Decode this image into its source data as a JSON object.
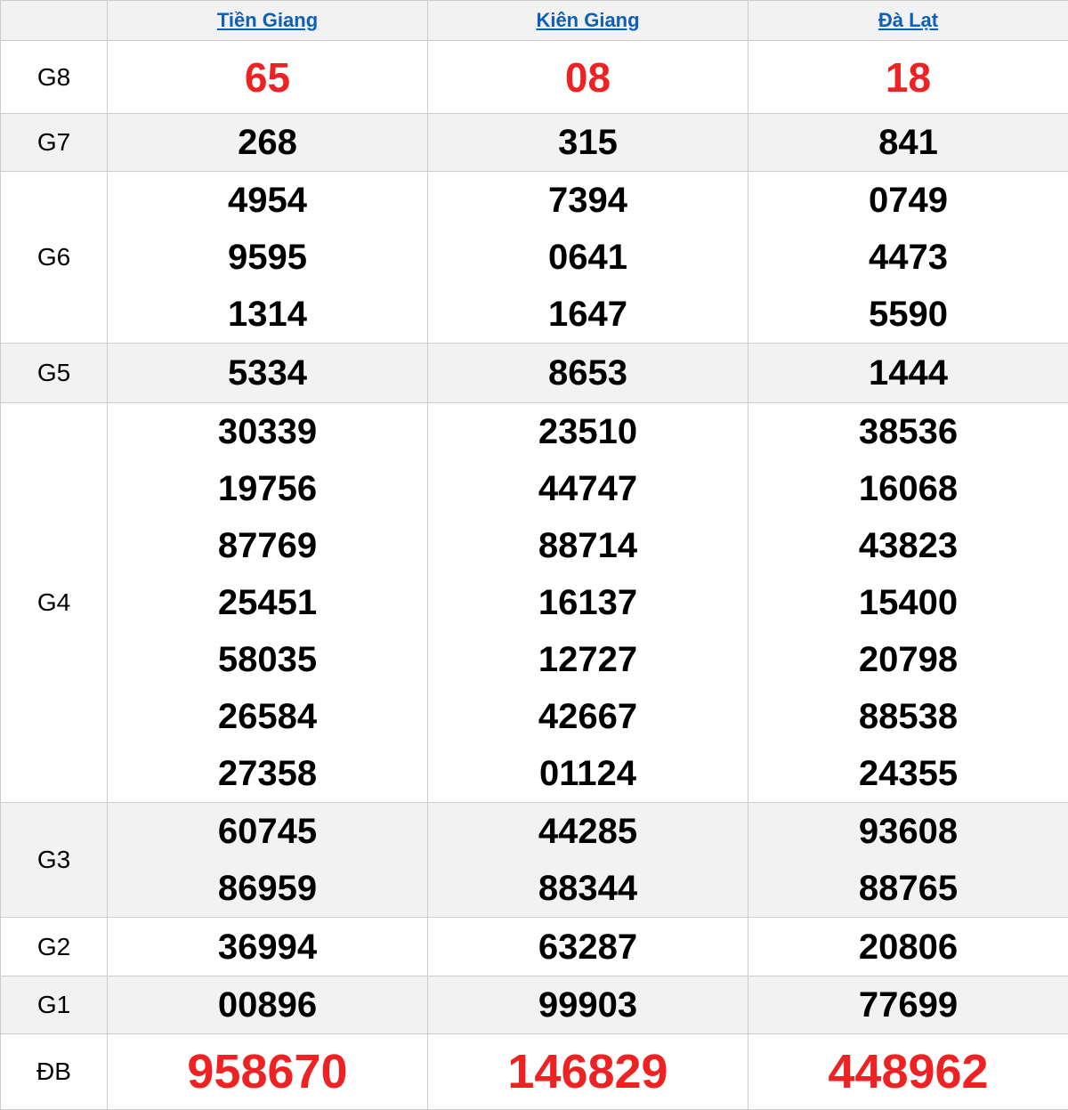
{
  "colors": {
    "highlight_red": "#ee2222",
    "link_blue": "#0e5fb8",
    "row_stripe": "#f2f2f2",
    "border_gray": "#cccccc",
    "number_black": "#000000"
  },
  "header": {
    "columns": [
      {
        "label": "Tiền Giang"
      },
      {
        "label": "Kiên Giang"
      },
      {
        "label": "Đà Lạt"
      }
    ]
  },
  "prizes": [
    {
      "label": "G8",
      "value_style": "red-lg",
      "values": [
        [
          "65"
        ],
        [
          "08"
        ],
        [
          "18"
        ]
      ]
    },
    {
      "label": "G7",
      "value_style": "",
      "values": [
        [
          "268"
        ],
        [
          "315"
        ],
        [
          "841"
        ]
      ]
    },
    {
      "label": "G6",
      "value_style": "",
      "values": [
        [
          "4954",
          "9595",
          "1314"
        ],
        [
          "7394",
          "0641",
          "1647"
        ],
        [
          "0749",
          "4473",
          "5590"
        ]
      ]
    },
    {
      "label": "G5",
      "value_style": "",
      "values": [
        [
          "5334"
        ],
        [
          "8653"
        ],
        [
          "1444"
        ]
      ]
    },
    {
      "label": "G4",
      "value_style": "",
      "values": [
        [
          "30339",
          "19756",
          "87769",
          "25451",
          "58035",
          "26584",
          "27358"
        ],
        [
          "23510",
          "44747",
          "88714",
          "16137",
          "12727",
          "42667",
          "01124"
        ],
        [
          "38536",
          "16068",
          "43823",
          "15400",
          "20798",
          "88538",
          "24355"
        ]
      ]
    },
    {
      "label": "G3",
      "value_style": "",
      "values": [
        [
          "60745",
          "86959"
        ],
        [
          "44285",
          "88344"
        ],
        [
          "93608",
          "88765"
        ]
      ]
    },
    {
      "label": "G2",
      "value_style": "",
      "values": [
        [
          "36994"
        ],
        [
          "63287"
        ],
        [
          "20806"
        ]
      ]
    },
    {
      "label": "G1",
      "value_style": "",
      "values": [
        [
          "00896"
        ],
        [
          "99903"
        ],
        [
          "77699"
        ]
      ]
    },
    {
      "label": "ĐB",
      "value_style": "red-xl",
      "values": [
        [
          "958670"
        ],
        [
          "146829"
        ],
        [
          "448962"
        ]
      ]
    }
  ]
}
